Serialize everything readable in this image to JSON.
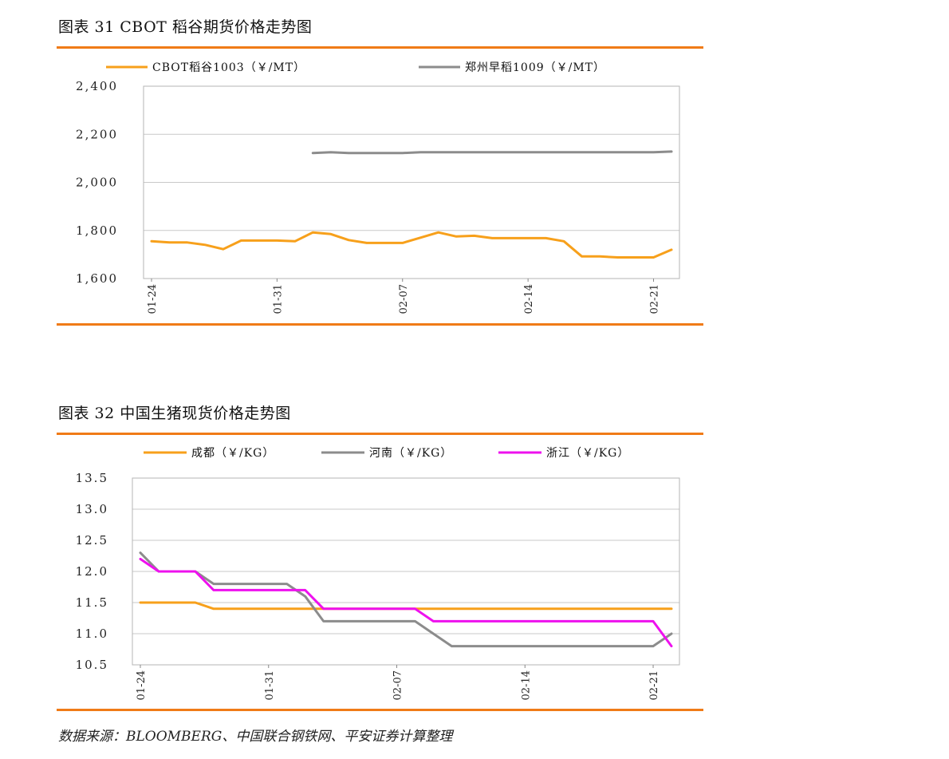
{
  "figures": [
    {
      "title": "图表 31  CBOT 稻谷期货价格走势图"
    },
    {
      "title": "图表 32  中国生猪现货价格走势图"
    }
  ],
  "source": "数据来源：BLOOMBERG、中国联合钢铁网、平安证券计算整理",
  "chart_data": [
    {
      "type": "line",
      "title": "",
      "xlabel": "",
      "ylabel": "",
      "ylim": [
        1600,
        2400
      ],
      "yticks": [
        "1,600",
        "1,800",
        "2,000",
        "2,200",
        "2,400"
      ],
      "xticks": [
        "01-24",
        "01-31",
        "02-07",
        "02-14",
        "02-21"
      ],
      "grid": "horizontal",
      "legend": "top",
      "x": [
        "01-24",
        "01-25",
        "01-26",
        "01-27",
        "01-28",
        "01-29",
        "01-30",
        "01-31",
        "02-01",
        "02-02",
        "02-03",
        "02-04",
        "02-05",
        "02-06",
        "02-07",
        "02-08",
        "02-09",
        "02-10",
        "02-11",
        "02-12",
        "02-13",
        "02-14",
        "02-15",
        "02-16",
        "02-17",
        "02-18",
        "02-19",
        "02-20",
        "02-21",
        "02-22"
      ],
      "series": [
        {
          "name": "CBOT稻谷1003（￥/MT）",
          "color": "#f7a01b",
          "values": [
            1755,
            1750,
            1750,
            1740,
            1722,
            1758,
            1758,
            1758,
            1755,
            1792,
            1785,
            1760,
            1748,
            1748,
            1748,
            1770,
            1792,
            1775,
            1778,
            1768,
            1768,
            1768,
            1768,
            1755,
            1692,
            1692,
            1688,
            1688,
            1688,
            1720
          ]
        },
        {
          "name": "郑州早稻1009（￥/MT）",
          "color": "#8c8c8c",
          "values": [
            null,
            null,
            null,
            null,
            null,
            null,
            null,
            null,
            null,
            2122,
            2125,
            2122,
            2122,
            2122,
            2122,
            2125,
            2125,
            2125,
            2125,
            2125,
            2125,
            2125,
            2125,
            2125,
            2125,
            2125,
            2125,
            2125,
            2125,
            2128
          ]
        }
      ]
    },
    {
      "type": "line",
      "title": "",
      "xlabel": "",
      "ylabel": "",
      "ylim": [
        10.5,
        13.5
      ],
      "yticks": [
        "10.5",
        "11.0",
        "11.5",
        "12.0",
        "12.5",
        "13.0",
        "13.5"
      ],
      "xticks": [
        "01-24",
        "01-31",
        "02-07",
        "02-14",
        "02-21"
      ],
      "grid": "horizontal",
      "legend": "top",
      "x": [
        "01-24",
        "01-25",
        "01-26",
        "01-27",
        "01-28",
        "01-29",
        "01-30",
        "01-31",
        "02-01",
        "02-02",
        "02-03",
        "02-04",
        "02-05",
        "02-06",
        "02-07",
        "02-08",
        "02-09",
        "02-10",
        "02-11",
        "02-12",
        "02-13",
        "02-14",
        "02-15",
        "02-16",
        "02-17",
        "02-18",
        "02-19",
        "02-20",
        "02-21",
        "02-22"
      ],
      "series": [
        {
          "name": "成都（￥/KG）",
          "color": "#f7a01b",
          "values": [
            11.5,
            11.5,
            11.5,
            11.5,
            11.4,
            11.4,
            11.4,
            11.4,
            11.4,
            11.4,
            11.4,
            11.4,
            11.4,
            11.4,
            11.4,
            11.4,
            11.4,
            11.4,
            11.4,
            11.4,
            11.4,
            11.4,
            11.4,
            11.4,
            11.4,
            11.4,
            11.4,
            11.4,
            11.4,
            11.4
          ]
        },
        {
          "name": "河南（￥/KG）",
          "color": "#8c8c8c",
          "values": [
            12.3,
            12.0,
            12.0,
            12.0,
            11.8,
            11.8,
            11.8,
            11.8,
            11.8,
            11.6,
            11.2,
            11.2,
            11.2,
            11.2,
            11.2,
            11.2,
            11.0,
            10.8,
            10.8,
            10.8,
            10.8,
            10.8,
            10.8,
            10.8,
            10.8,
            10.8,
            10.8,
            10.8,
            10.8,
            11.0
          ]
        },
        {
          "name": "浙江（￥/KG）",
          "color": "#ee11ee",
          "values": [
            12.2,
            12.0,
            12.0,
            12.0,
            11.7,
            11.7,
            11.7,
            11.7,
            11.7,
            11.7,
            11.4,
            11.4,
            11.4,
            11.4,
            11.4,
            11.4,
            11.2,
            11.2,
            11.2,
            11.2,
            11.2,
            11.2,
            11.2,
            11.2,
            11.2,
            11.2,
            11.2,
            11.2,
            11.2,
            10.8
          ]
        }
      ]
    }
  ]
}
